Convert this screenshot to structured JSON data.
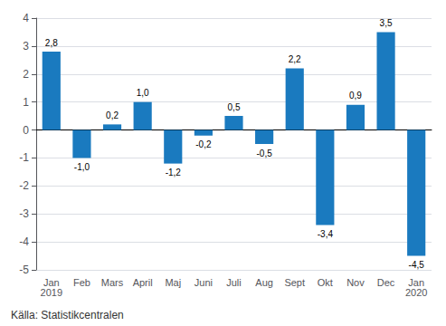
{
  "chart_data": {
    "type": "bar",
    "categories": [
      "Jan\n2019",
      "Feb",
      "Mars",
      "April",
      "Maj",
      "Juni",
      "Juli",
      "Aug",
      "Sept",
      "Okt",
      "Nov",
      "Dec",
      "Jan\n2020"
    ],
    "values": [
      2.8,
      -1.0,
      0.2,
      1.0,
      -1.2,
      -0.2,
      0.5,
      -0.5,
      2.2,
      -3.4,
      0.9,
      3.5,
      -4.5
    ],
    "value_labels": [
      "2,8",
      "-1,0",
      "0,2",
      "1,0",
      "-1,2",
      "-0,2",
      "0,5",
      "-0,5",
      "2,2",
      "-3,4",
      "0,9",
      "3,5",
      "-4,5"
    ],
    "data_labels": true,
    "color": "#1a7abf",
    "ylim": [
      -5,
      4
    ],
    "yticks": [
      -5,
      -4,
      -3,
      -2,
      -1,
      0,
      1,
      2,
      3,
      4
    ],
    "grid": true,
    "annotations": [
      "Källa: Statistikcentralen"
    ]
  }
}
